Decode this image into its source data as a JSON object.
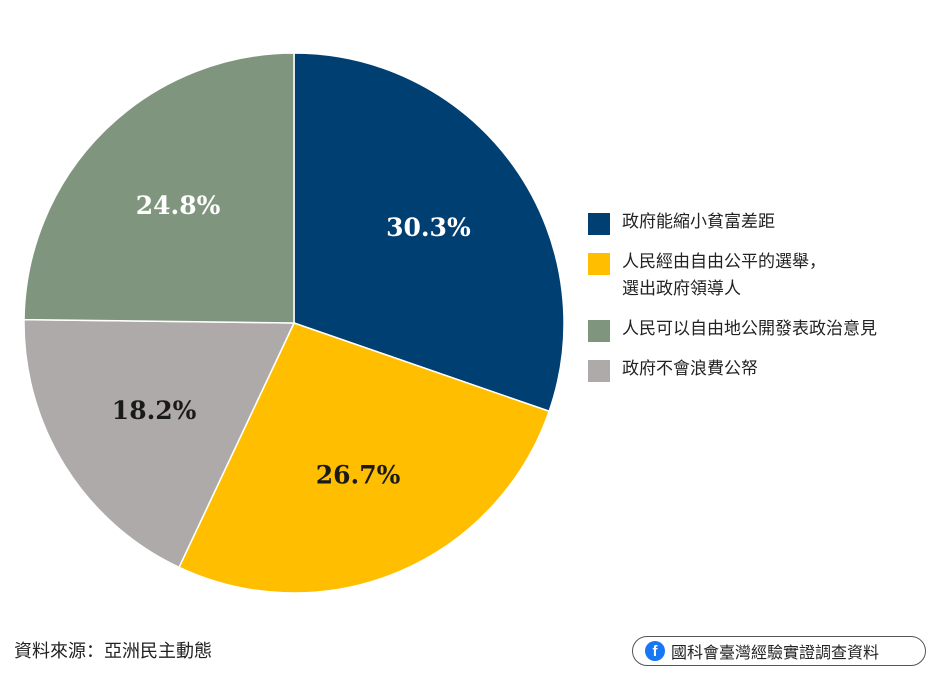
{
  "chart_data": {
    "type": "pie",
    "slices": [
      {
        "label": "政府能縮小貧富差距",
        "value": 30.3,
        "display": "30.3%",
        "color": "#003f72",
        "label_color": "#ffffff"
      },
      {
        "label": "人民經由自由公平的選舉，\n選出政府領導人",
        "value": 26.7,
        "display": "26.7%",
        "color": "#ffbf00",
        "label_color": "#1a1a1a"
      },
      {
        "label": "政府不會浪費公帑",
        "value": 18.2,
        "display": "18.2%",
        "color": "#adaaa9",
        "label_color": "#1a1a1a"
      },
      {
        "label": "人民可以自由地公開發表政治意見",
        "value": 24.8,
        "display": "24.8%",
        "color": "#7f957e",
        "label_color": "#ffffff"
      }
    ],
    "start_angle": "12 o'clock",
    "direction": "clockwise",
    "legend_position": "right",
    "legend_order": [
      0,
      1,
      3,
      2
    ]
  },
  "footer": {
    "source": "資料來源：亞洲民主動態",
    "credit_icon": "facebook-icon",
    "credit": "國科會臺灣經驗實證調查資料"
  }
}
